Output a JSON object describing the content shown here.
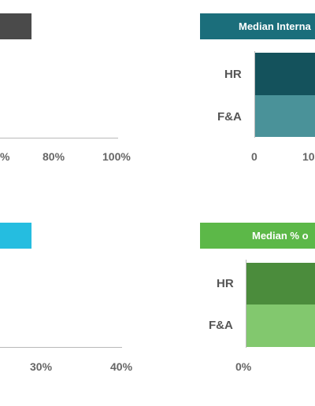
{
  "chart_data": [
    {
      "type": "bar",
      "position_label": "top-left",
      "title": "",
      "color": "#4a4a4a",
      "ticks": [
        "%",
        "80%",
        "100%"
      ]
    },
    {
      "type": "bar",
      "position_label": "top-right",
      "title": "Median Interna",
      "color": "#1b6e7b",
      "categories": [
        "HR",
        "F&A"
      ],
      "series_colors": [
        "#14525c",
        "#4a9299"
      ],
      "ticks": [
        "0",
        "10"
      ]
    },
    {
      "type": "bar",
      "position_label": "bottom-left",
      "title": "",
      "color": "#25bde0",
      "ticks": [
        "30%",
        "40%"
      ]
    },
    {
      "type": "bar",
      "position_label": "bottom-right",
      "title": "Median % o",
      "color": "#5cb848",
      "categories": [
        "HR",
        "F&A"
      ],
      "series_colors": [
        "#4b8c3c",
        "#82c86e"
      ],
      "ticks": [
        "0%"
      ]
    }
  ]
}
